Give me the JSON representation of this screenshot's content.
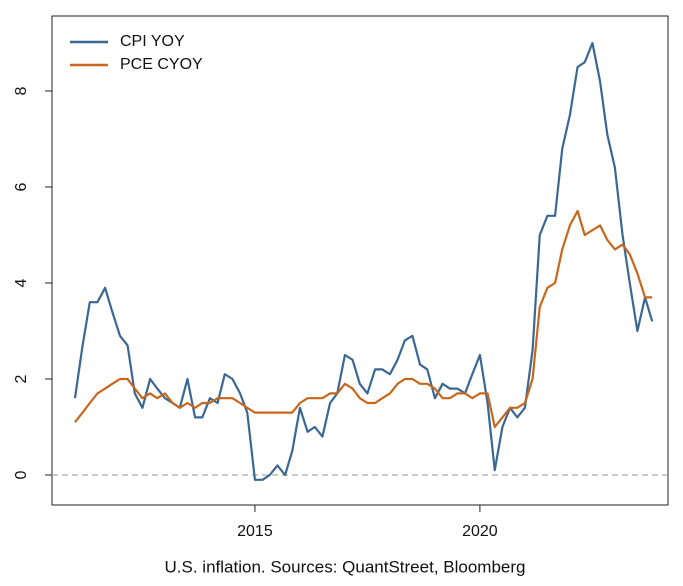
{
  "chart_data": {
    "type": "line",
    "caption": "U.S. inflation. Sources: QuantStreet, Bloomberg",
    "x": [
      2011.0,
      2011.17,
      2011.33,
      2011.5,
      2011.67,
      2011.83,
      2012.0,
      2012.17,
      2012.33,
      2012.5,
      2012.67,
      2012.83,
      2013.0,
      2013.17,
      2013.33,
      2013.5,
      2013.67,
      2013.83,
      2014.0,
      2014.17,
      2014.33,
      2014.5,
      2014.67,
      2014.83,
      2015.0,
      2015.17,
      2015.33,
      2015.5,
      2015.67,
      2015.83,
      2016.0,
      2016.17,
      2016.33,
      2016.5,
      2016.67,
      2016.83,
      2017.0,
      2017.17,
      2017.33,
      2017.5,
      2017.67,
      2017.83,
      2018.0,
      2018.17,
      2018.33,
      2018.5,
      2018.67,
      2018.83,
      2019.0,
      2019.17,
      2019.33,
      2019.5,
      2019.67,
      2019.83,
      2020.0,
      2020.17,
      2020.33,
      2020.5,
      2020.67,
      2020.83,
      2021.0,
      2021.17,
      2021.33,
      2021.5,
      2021.67,
      2021.83,
      2022.0,
      2022.17,
      2022.33,
      2022.5,
      2022.67,
      2022.83,
      2023.0,
      2023.17,
      2023.33,
      2023.5,
      2023.67,
      2023.83
    ],
    "series": [
      {
        "name": "CPI YOY",
        "color": "#3a6793",
        "values": [
          1.6,
          2.7,
          3.6,
          3.6,
          3.9,
          3.4,
          2.9,
          2.7,
          1.7,
          1.4,
          2.0,
          1.8,
          1.6,
          1.5,
          1.4,
          2.0,
          1.2,
          1.2,
          1.6,
          1.5,
          2.1,
          2.0,
          1.7,
          1.3,
          -0.1,
          -0.1,
          0.0,
          0.2,
          0.0,
          0.5,
          1.4,
          0.9,
          1.0,
          0.8,
          1.5,
          1.7,
          2.5,
          2.4,
          1.9,
          1.7,
          2.2,
          2.2,
          2.1,
          2.4,
          2.8,
          2.9,
          2.3,
          2.2,
          1.6,
          1.9,
          1.8,
          1.8,
          1.7,
          2.1,
          2.5,
          1.5,
          0.1,
          1.0,
          1.4,
          1.2,
          1.4,
          2.6,
          5.0,
          5.4,
          5.4,
          6.8,
          7.5,
          8.5,
          8.6,
          9.0,
          8.2,
          7.1,
          6.4,
          5.0,
          4.0,
          3.0,
          3.7,
          3.2
        ]
      },
      {
        "name": "PCE CYOY",
        "color": "#c8671b",
        "values": [
          1.1,
          1.3,
          1.5,
          1.7,
          1.8,
          1.9,
          2.0,
          2.0,
          1.8,
          1.6,
          1.7,
          1.6,
          1.7,
          1.5,
          1.4,
          1.5,
          1.4,
          1.5,
          1.5,
          1.6,
          1.6,
          1.6,
          1.5,
          1.4,
          1.3,
          1.3,
          1.3,
          1.3,
          1.3,
          1.3,
          1.5,
          1.6,
          1.6,
          1.6,
          1.7,
          1.7,
          1.9,
          1.8,
          1.6,
          1.5,
          1.5,
          1.6,
          1.7,
          1.9,
          2.0,
          2.0,
          1.9,
          1.9,
          1.8,
          1.6,
          1.6,
          1.7,
          1.7,
          1.6,
          1.7,
          1.7,
          1.0,
          1.2,
          1.4,
          1.4,
          1.5,
          2.0,
          3.5,
          3.9,
          4.0,
          4.7,
          5.2,
          5.5,
          5.0,
          5.1,
          5.2,
          4.9,
          4.7,
          4.8,
          4.6,
          4.2,
          3.7,
          3.7
        ]
      }
    ],
    "xlim": [
      2010.49,
      2024.18
    ],
    "xticks": [
      2015,
      2020
    ],
    "ylim": [
      -0.625,
      9.5625
    ],
    "yticks": [
      0,
      2,
      4,
      6,
      8
    ],
    "hline": 0,
    "legend": "top-left"
  }
}
